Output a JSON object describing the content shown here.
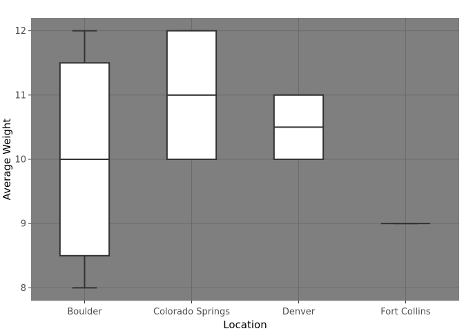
{
  "chart_data": {
    "type": "box",
    "xlabel": "Location",
    "ylabel": "Average Weight",
    "ylim": [
      7.8,
      12.2
    ],
    "y_ticks": [
      8,
      9,
      10,
      11,
      12
    ],
    "categories": [
      "Boulder",
      "Colorado Springs",
      "Denver",
      "Fort Collins"
    ],
    "boxes": [
      {
        "category": "Boulder",
        "min": 8,
        "q1": 8.5,
        "median": 10,
        "q3": 11.5,
        "max": 12
      },
      {
        "category": "Colorado Springs",
        "min": 10,
        "q1": 10,
        "median": 11,
        "q3": 12,
        "max": 12
      },
      {
        "category": "Denver",
        "min": 10,
        "q1": 10,
        "median": 10.5,
        "q3": 11,
        "max": 11
      },
      {
        "category": "Fort Collins",
        "min": 9,
        "q1": 9,
        "median": 9,
        "q3": 9,
        "max": 9
      }
    ],
    "grid": true,
    "legend": "none",
    "colors": {
      "panel": "#7f7f7f",
      "grid": "#6b6b6b",
      "box_fill": "#ffffff",
      "box_stroke": "#333333"
    }
  }
}
